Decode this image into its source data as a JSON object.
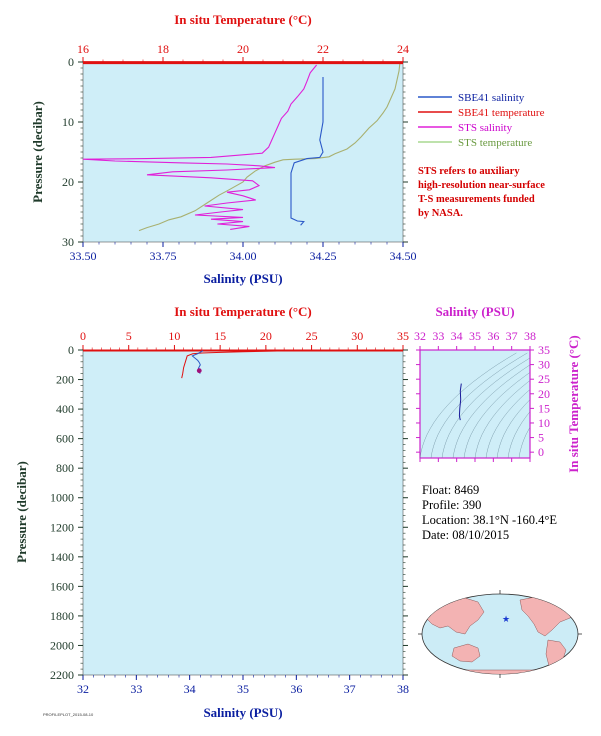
{
  "colors": {
    "plot_bg": "#cfeef8",
    "salinity_axis": "#0a1ea0",
    "temperature_axis": "#e01010",
    "pressure_axis": "#1f3a2a",
    "sts_salinity": "#e020d8",
    "sts_temperature": "#a8b070",
    "sbe41_salinity": "#2a58c8",
    "sbe41_temperature": "#e01010",
    "ts_magenta": "#cc22cc",
    "ts_line": "#1a1a9a",
    "map_land": "#f3b3b3",
    "map_ocean": "#ccecf6",
    "map_marker": "#1a3ad0"
  },
  "legend": {
    "items": [
      {
        "label": "SBE41 salinity",
        "color_key": "sbe41_salinity"
      },
      {
        "label": "SBE41 temperature",
        "color_key": "sbe41_temperature"
      },
      {
        "label": "STS salinity",
        "color_key": "sts_salinity"
      },
      {
        "label": "STS temperature",
        "color_key": "sts_temperature"
      }
    ]
  },
  "note": {
    "lines": [
      "STS refers to auxiliary",
      "high-resolution near-surface",
      "T-S measurements funded",
      "by NASA."
    ]
  },
  "info": {
    "float": "Float:  8469",
    "profile": "Profile:  390",
    "location": "Location:  38.1°N  -160.4°E",
    "date": "Date:  08/10/2015"
  },
  "footer": {
    "small_text": "PROFILEPLOT_2015-08-10"
  },
  "chart_data": [
    {
      "id": "top-panel",
      "type": "line",
      "top_axis_title": "In situ Temperature (°C)",
      "bottom_axis_title": "Salinity (PSU)",
      "left_axis_title": "Pressure (decibar)",
      "temperature_ticks": [
        "16",
        "18",
        "20",
        "22",
        "24"
      ],
      "salinity_ticks": [
        "33.50",
        "33.75",
        "34.00",
        "34.25",
        "34.50"
      ],
      "pressure_ticks": [
        "0",
        "10",
        "20",
        "30"
      ],
      "salinity_range": [
        33.5,
        34.5
      ],
      "temperature_range": [
        16,
        24
      ],
      "pressure_range": [
        0,
        30
      ],
      "series": [
        {
          "name": "STS temperature",
          "color_key": "sts_temperature",
          "axis": "temperature",
          "points": [
            [
              23.92,
              0.3
            ],
            [
              23.9,
              1.5
            ],
            [
              23.85,
              3.0
            ],
            [
              23.8,
              4.5
            ],
            [
              23.7,
              6.0
            ],
            [
              23.6,
              7.5
            ],
            [
              23.5,
              8.5
            ],
            [
              23.35,
              9.8
            ],
            [
              23.15,
              11.0
            ],
            [
              22.95,
              12.5
            ],
            [
              22.8,
              13.5
            ],
            [
              22.6,
              14.5
            ],
            [
              22.3,
              15.3
            ],
            [
              22.15,
              15.8
            ],
            [
              21.8,
              16.1
            ],
            [
              21.3,
              16.2
            ],
            [
              21.0,
              16.3
            ],
            [
              20.8,
              16.7
            ],
            [
              20.55,
              17.3
            ],
            [
              20.3,
              18.2
            ],
            [
              20.1,
              19.2
            ],
            [
              20.0,
              20.0
            ],
            [
              19.65,
              21.3
            ],
            [
              19.4,
              22.2
            ],
            [
              19.1,
              23.5
            ],
            [
              18.8,
              24.8
            ],
            [
              18.45,
              25.8
            ],
            [
              18.15,
              26.3
            ],
            [
              17.9,
              27.0
            ],
            [
              17.6,
              27.6
            ],
            [
              17.4,
              28.1
            ]
          ]
        },
        {
          "name": "STS salinity",
          "color_key": "sts_salinity",
          "axis": "salinity",
          "points": [
            [
              34.23,
              0.5
            ],
            [
              34.21,
              1.8
            ],
            [
              34.2,
              3.2
            ],
            [
              34.19,
              4.5
            ],
            [
              34.17,
              5.8
            ],
            [
              34.15,
              7.0
            ],
            [
              34.14,
              8.2
            ],
            [
              34.12,
              9.4
            ],
            [
              34.11,
              10.6
            ],
            [
              34.1,
              11.8
            ],
            [
              34.09,
              13.0
            ],
            [
              34.08,
              14.2
            ],
            [
              34.06,
              15.2
            ],
            [
              33.9,
              15.9
            ],
            [
              33.7,
              16.1
            ],
            [
              33.5,
              16.2
            ],
            [
              33.6,
              16.5
            ],
            [
              33.8,
              16.8
            ],
            [
              33.95,
              17.0
            ],
            [
              34.05,
              17.3
            ],
            [
              34.1,
              17.6
            ],
            [
              33.95,
              18.0
            ],
            [
              33.78,
              18.3
            ],
            [
              33.7,
              18.8
            ],
            [
              33.9,
              19.3
            ],
            [
              34.03,
              19.8
            ],
            [
              34.05,
              20.6
            ],
            [
              34.02,
              21.3
            ],
            [
              33.95,
              21.7
            ],
            [
              34.0,
              22.3
            ],
            [
              34.04,
              23.0
            ],
            [
              33.95,
              23.5
            ],
            [
              33.88,
              24.0
            ],
            [
              34.0,
              24.6
            ],
            [
              33.93,
              25.0
            ],
            [
              33.85,
              25.5
            ],
            [
              34.0,
              25.9
            ],
            [
              33.9,
              26.2
            ],
            [
              34.0,
              26.6
            ],
            [
              33.92,
              27.0
            ],
            [
              34.02,
              27.4
            ],
            [
              33.96,
              27.9
            ]
          ]
        },
        {
          "name": "SBE41 salinity",
          "color_key": "sbe41_salinity",
          "axis": "salinity",
          "points": [
            [
              34.25,
              2.5
            ],
            [
              34.25,
              6.0
            ],
            [
              34.25,
              10.0
            ],
            [
              34.24,
              13.0
            ],
            [
              34.25,
              15.0
            ],
            [
              34.24,
              15.9
            ],
            [
              34.2,
              16.1
            ],
            [
              34.16,
              16.8
            ],
            [
              34.15,
              18.5
            ],
            [
              34.15,
              21.0
            ],
            [
              34.15,
              23.0
            ],
            [
              34.15,
              25.0
            ],
            [
              34.15,
              26.0
            ],
            [
              34.17,
              26.5
            ],
            [
              34.19,
              26.6
            ],
            [
              34.18,
              27.2
            ]
          ]
        },
        {
          "name": "SBE41 temperature",
          "color_key": "sbe41_temperature",
          "axis": "temperature",
          "points": [
            [
              16.0,
              0.1
            ],
            [
              24.0,
              0.1
            ]
          ]
        }
      ]
    },
    {
      "id": "bottom-panel",
      "type": "line",
      "top_axis_title": "In situ Temperature (°C)",
      "bottom_axis_title": "Salinity (PSU)",
      "left_axis_title": "Pressure (decibar)",
      "temperature_ticks": [
        "0",
        "5",
        "10",
        "15",
        "20",
        "25",
        "30",
        "35"
      ],
      "salinity_ticks": [
        "32",
        "33",
        "34",
        "35",
        "36",
        "37",
        "38"
      ],
      "pressure_ticks": [
        "0",
        "200",
        "400",
        "600",
        "800",
        "1000",
        "1200",
        "1400",
        "1600",
        "1800",
        "2000",
        "2200"
      ],
      "salinity_range": [
        32,
        38
      ],
      "temperature_range": [
        0,
        35
      ],
      "pressure_range": [
        0,
        2200
      ],
      "series": [
        {
          "name": "SBE41 temperature",
          "color_key": "sbe41_temperature",
          "axis": "temperature",
          "points": [
            [
              25.5,
              1
            ],
            [
              24.0,
              3
            ],
            [
              22.5,
              5
            ],
            [
              20.0,
              8
            ],
            [
              17.5,
              12
            ],
            [
              15.0,
              16
            ],
            [
              13.0,
              20
            ],
            [
              12.0,
              26
            ],
            [
              11.4,
              40
            ],
            [
              11.2,
              80
            ],
            [
              11.0,
              120
            ],
            [
              10.9,
              160
            ],
            [
              10.8,
              190
            ]
          ]
        },
        {
          "name": "SBE41 salinity",
          "color_key": "sbe41_salinity",
          "axis": "salinity",
          "points": [
            [
              34.25,
              5
            ],
            [
              34.2,
              15
            ],
            [
              34.15,
              25
            ],
            [
              34.05,
              40
            ],
            [
              34.1,
              55
            ],
            [
              34.15,
              70
            ],
            [
              34.18,
              85
            ],
            [
              34.2,
              100
            ],
            [
              34.17,
              120
            ],
            [
              34.15,
              140
            ],
            [
              34.2,
              160
            ]
          ]
        }
      ],
      "marker": {
        "salinity": 34.18,
        "pressure": 140
      }
    },
    {
      "id": "ts-diagram",
      "type": "line",
      "top_axis_title": "Salinity (PSU)",
      "right_axis_title": "In situ Temperature (°C)",
      "salinity_ticks": [
        "32",
        "33",
        "34",
        "35",
        "36",
        "37",
        "38"
      ],
      "temperature_ticks": [
        "0",
        "5",
        "10",
        "15",
        "20",
        "25",
        "30",
        "35"
      ],
      "salinity_range": [
        32,
        38
      ],
      "temperature_range": [
        -2,
        35
      ],
      "series": [
        {
          "name": "T-S curve",
          "color_key": "ts_line",
          "points": [
            [
              34.2,
              11.0
            ],
            [
              34.15,
              12.5
            ],
            [
              34.17,
              15
            ],
            [
              34.22,
              18
            ],
            [
              34.2,
              21
            ],
            [
              34.25,
              23.5
            ]
          ]
        }
      ]
    }
  ]
}
